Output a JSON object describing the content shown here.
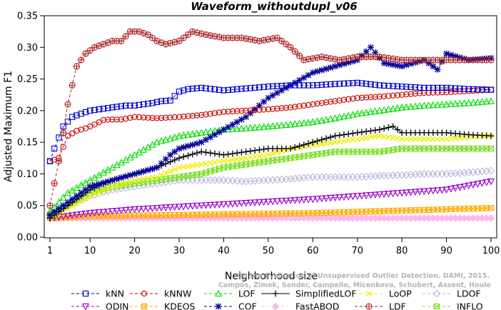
{
  "chart_data": {
    "type": "line",
    "title": "Waveform_withoutdupl_v06",
    "xlabel": "Neighborhood size",
    "ylabel": "Adjusted Maximum F1",
    "xlim": [
      1,
      100
    ],
    "ylim": [
      0,
      0.35
    ],
    "x_ticks": [
      1,
      10,
      20,
      30,
      40,
      50,
      60,
      70,
      80,
      90,
      100
    ],
    "y_ticks": [
      "0.00",
      "0.05",
      "0.10",
      "0.15",
      "0.20",
      "0.25",
      "0.30",
      "0.35"
    ],
    "grid": false,
    "credit": [
      "Campos, Zimek, Sander, Campello, Micenkova, Schubert, Assent, Houle",
      "On the Evaluation of Unsupervised Outlier Detection. DAMI, 2015."
    ],
    "series": [
      {
        "name": "kNN",
        "color": "#0000cc",
        "marker": "square",
        "dash": "dashed",
        "points": [
          [
            1,
            0.12
          ],
          [
            2,
            0.14
          ],
          [
            4,
            0.175
          ],
          [
            6,
            0.19
          ],
          [
            8,
            0.195
          ],
          [
            10,
            0.2
          ],
          [
            12,
            0.202
          ],
          [
            14,
            0.204
          ],
          [
            16,
            0.206
          ],
          [
            18,
            0.208
          ],
          [
            20,
            0.208
          ],
          [
            22,
            0.21
          ],
          [
            24,
            0.212
          ],
          [
            26,
            0.215
          ],
          [
            28,
            0.216
          ],
          [
            30,
            0.23
          ],
          [
            32,
            0.234
          ],
          [
            35,
            0.236
          ],
          [
            40,
            0.232
          ],
          [
            45,
            0.235
          ],
          [
            50,
            0.238
          ],
          [
            55,
            0.24
          ],
          [
            60,
            0.24
          ],
          [
            65,
            0.242
          ],
          [
            70,
            0.244
          ],
          [
            75,
            0.24
          ],
          [
            80,
            0.238
          ],
          [
            85,
            0.236
          ],
          [
            90,
            0.236
          ],
          [
            95,
            0.234
          ],
          [
            100,
            0.233
          ]
        ]
      },
      {
        "name": "kNNW",
        "color": "#cc0000",
        "marker": "circle",
        "dash": "dashed",
        "points": [
          [
            1,
            0.12
          ],
          [
            3,
            0.125
          ],
          [
            5,
            0.16
          ],
          [
            7,
            0.168
          ],
          [
            9,
            0.172
          ],
          [
            11,
            0.178
          ],
          [
            13,
            0.185
          ],
          [
            15,
            0.186
          ],
          [
            17,
            0.186
          ],
          [
            20,
            0.19
          ],
          [
            25,
            0.188
          ],
          [
            30,
            0.19
          ],
          [
            35,
            0.193
          ],
          [
            40,
            0.198
          ],
          [
            45,
            0.2
          ],
          [
            50,
            0.202
          ],
          [
            55,
            0.205
          ],
          [
            60,
            0.21
          ],
          [
            65,
            0.215
          ],
          [
            70,
            0.22
          ],
          [
            75,
            0.222
          ],
          [
            80,
            0.225
          ],
          [
            85,
            0.228
          ],
          [
            90,
            0.229
          ],
          [
            95,
            0.231
          ],
          [
            100,
            0.233
          ]
        ]
      },
      {
        "name": "LOF",
        "color": "#00dd00",
        "marker": "triangle-up",
        "dash": "dashed",
        "points": [
          [
            1,
            0.04
          ],
          [
            5,
            0.07
          ],
          [
            10,
            0.09
          ],
          [
            15,
            0.11
          ],
          [
            20,
            0.13
          ],
          [
            25,
            0.15
          ],
          [
            30,
            0.16
          ],
          [
            35,
            0.165
          ],
          [
            40,
            0.17
          ],
          [
            45,
            0.172
          ],
          [
            50,
            0.175
          ],
          [
            55,
            0.178
          ],
          [
            60,
            0.182
          ],
          [
            65,
            0.188
          ],
          [
            70,
            0.195
          ],
          [
            75,
            0.2
          ],
          [
            80,
            0.205
          ],
          [
            85,
            0.208
          ],
          [
            90,
            0.21
          ],
          [
            95,
            0.212
          ],
          [
            100,
            0.215
          ]
        ]
      },
      {
        "name": "SimplifiedLOF",
        "color": "#000000",
        "marker": "plus",
        "dash": "solid",
        "points": [
          [
            1,
            0.03
          ],
          [
            5,
            0.05
          ],
          [
            10,
            0.075
          ],
          [
            15,
            0.09
          ],
          [
            20,
            0.1
          ],
          [
            25,
            0.11
          ],
          [
            30,
            0.125
          ],
          [
            35,
            0.135
          ],
          [
            40,
            0.13
          ],
          [
            45,
            0.135
          ],
          [
            50,
            0.14
          ],
          [
            55,
            0.14
          ],
          [
            60,
            0.15
          ],
          [
            65,
            0.16
          ],
          [
            70,
            0.165
          ],
          [
            75,
            0.17
          ],
          [
            78,
            0.175
          ],
          [
            80,
            0.165
          ],
          [
            85,
            0.165
          ],
          [
            90,
            0.165
          ],
          [
            95,
            0.162
          ],
          [
            100,
            0.16
          ]
        ]
      },
      {
        "name": "LoOP",
        "color": "#eeee00",
        "marker": "x",
        "dash": "dashed",
        "points": [
          [
            1,
            0.03
          ],
          [
            5,
            0.045
          ],
          [
            10,
            0.065
          ],
          [
            15,
            0.08
          ],
          [
            20,
            0.09
          ],
          [
            25,
            0.095
          ],
          [
            30,
            0.11
          ],
          [
            35,
            0.115
          ],
          [
            40,
            0.12
          ],
          [
            45,
            0.125
          ],
          [
            50,
            0.13
          ],
          [
            55,
            0.14
          ],
          [
            60,
            0.145
          ],
          [
            65,
            0.15
          ],
          [
            70,
            0.155
          ],
          [
            75,
            0.16
          ],
          [
            80,
            0.155
          ],
          [
            85,
            0.155
          ],
          [
            90,
            0.155
          ],
          [
            95,
            0.158
          ],
          [
            100,
            0.16
          ]
        ]
      },
      {
        "name": "LDOF",
        "color": "#b8b8dd",
        "marker": "diamond",
        "dash": "dashed",
        "points": [
          [
            1,
            0.035
          ],
          [
            5,
            0.05
          ],
          [
            10,
            0.065
          ],
          [
            15,
            0.075
          ],
          [
            20,
            0.08
          ],
          [
            25,
            0.085
          ],
          [
            30,
            0.09
          ],
          [
            35,
            0.09
          ],
          [
            40,
            0.09
          ],
          [
            45,
            0.088
          ],
          [
            50,
            0.09
          ],
          [
            55,
            0.092
          ],
          [
            60,
            0.095
          ],
          [
            65,
            0.095
          ],
          [
            70,
            0.095
          ],
          [
            75,
            0.097
          ],
          [
            80,
            0.098
          ],
          [
            85,
            0.1
          ],
          [
            90,
            0.1
          ],
          [
            95,
            0.102
          ],
          [
            100,
            0.105
          ]
        ]
      },
      {
        "name": "ODIN",
        "color": "#9900cc",
        "marker": "triangle-down",
        "dash": "dashed",
        "points": [
          [
            1,
            0.03
          ],
          [
            10,
            0.038
          ],
          [
            20,
            0.044
          ],
          [
            30,
            0.048
          ],
          [
            40,
            0.052
          ],
          [
            50,
            0.056
          ],
          [
            60,
            0.06
          ],
          [
            70,
            0.065
          ],
          [
            80,
            0.07
          ],
          [
            90,
            0.075
          ],
          [
            100,
            0.088
          ]
        ]
      },
      {
        "name": "KDEOS",
        "color": "#ffaa00",
        "marker": "square-x",
        "dash": "dashed",
        "points": [
          [
            1,
            0.03
          ],
          [
            10,
            0.033
          ],
          [
            20,
            0.034
          ],
          [
            30,
            0.035
          ],
          [
            40,
            0.036
          ],
          [
            50,
            0.037
          ],
          [
            60,
            0.038
          ],
          [
            70,
            0.04
          ],
          [
            80,
            0.042
          ],
          [
            90,
            0.044
          ],
          [
            100,
            0.046
          ]
        ]
      },
      {
        "name": "COF",
        "color": "#000099",
        "marker": "asterisk",
        "dash": "dashed",
        "points": [
          [
            1,
            0.035
          ],
          [
            5,
            0.055
          ],
          [
            10,
            0.08
          ],
          [
            15,
            0.09
          ],
          [
            20,
            0.1
          ],
          [
            25,
            0.11
          ],
          [
            28,
            0.13
          ],
          [
            30,
            0.14
          ],
          [
            35,
            0.15
          ],
          [
            40,
            0.17
          ],
          [
            45,
            0.19
          ],
          [
            50,
            0.22
          ],
          [
            55,
            0.24
          ],
          [
            60,
            0.26
          ],
          [
            65,
            0.27
          ],
          [
            70,
            0.28
          ],
          [
            73,
            0.3
          ],
          [
            76,
            0.275
          ],
          [
            80,
            0.27
          ],
          [
            85,
            0.28
          ],
          [
            88,
            0.265
          ],
          [
            90,
            0.29
          ],
          [
            95,
            0.28
          ],
          [
            100,
            0.283
          ]
        ]
      },
      {
        "name": "FastABOD",
        "color": "#ffb8ee",
        "marker": "diamond-filled",
        "dash": "dashed",
        "points": [
          [
            1,
            0.03
          ],
          [
            100,
            0.03
          ]
        ]
      },
      {
        "name": "LDF",
        "color": "#aa2222",
        "marker": "circle-plus",
        "dash": "dashed",
        "points": [
          [
            1,
            0.05
          ],
          [
            3,
            0.12
          ],
          [
            5,
            0.21
          ],
          [
            7,
            0.27
          ],
          [
            9,
            0.29
          ],
          [
            11,
            0.3
          ],
          [
            13,
            0.305
          ],
          [
            15,
            0.31
          ],
          [
            17,
            0.31
          ],
          [
            19,
            0.325
          ],
          [
            21,
            0.325
          ],
          [
            23,
            0.32
          ],
          [
            25,
            0.31
          ],
          [
            27,
            0.305
          ],
          [
            30,
            0.31
          ],
          [
            33,
            0.325
          ],
          [
            36,
            0.32
          ],
          [
            40,
            0.315
          ],
          [
            44,
            0.315
          ],
          [
            48,
            0.31
          ],
          [
            52,
            0.315
          ],
          [
            55,
            0.3
          ],
          [
            58,
            0.28
          ],
          [
            62,
            0.285
          ],
          [
            66,
            0.28
          ],
          [
            70,
            0.285
          ],
          [
            75,
            0.285
          ],
          [
            80,
            0.28
          ],
          [
            85,
            0.28
          ],
          [
            90,
            0.28
          ],
          [
            95,
            0.28
          ],
          [
            100,
            0.28
          ]
        ]
      }
    ],
    "legend": {
      "placement": "bottom",
      "rows": [
        [
          "kNN",
          "kNNW",
          "LOF",
          "SimplifiedLOF",
          "LoOP",
          "LDOF"
        ],
        [
          "ODIN",
          "KDEOS",
          "COF",
          "FastABOD",
          "LDF",
          "INFLO"
        ]
      ],
      "INFLO": {
        "name": "INFLO",
        "color": "#77dd22",
        "marker": "square-x",
        "points": [
          [
            1,
            0.035
          ],
          [
            5,
            0.05
          ],
          [
            10,
            0.07
          ],
          [
            15,
            0.08
          ],
          [
            20,
            0.085
          ],
          [
            25,
            0.09
          ],
          [
            30,
            0.095
          ],
          [
            35,
            0.1
          ],
          [
            40,
            0.11
          ],
          [
            45,
            0.115
          ],
          [
            50,
            0.12
          ],
          [
            55,
            0.125
          ],
          [
            60,
            0.13
          ],
          [
            65,
            0.135
          ],
          [
            70,
            0.135
          ],
          [
            75,
            0.135
          ],
          [
            80,
            0.14
          ],
          [
            85,
            0.14
          ],
          [
            90,
            0.14
          ],
          [
            95,
            0.14
          ],
          [
            100,
            0.14
          ]
        ]
      }
    }
  }
}
